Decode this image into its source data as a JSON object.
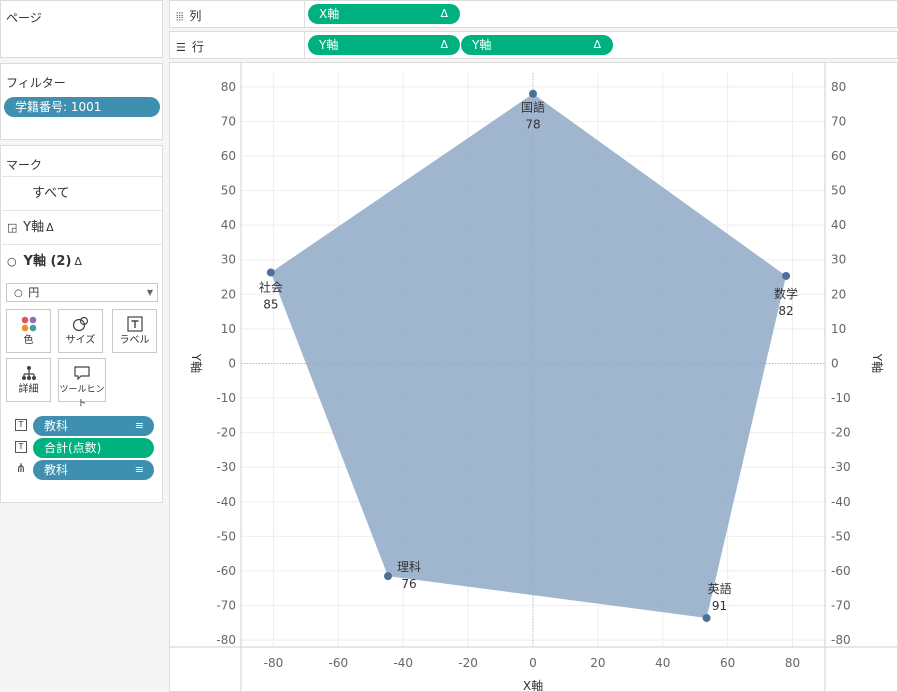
{
  "pages_title": "ページ",
  "filters": {
    "title": "フィルター",
    "items": [
      {
        "label": "学籍番号: 1001"
      }
    ]
  },
  "marks": {
    "title": "マーク",
    "all_label": "すべて",
    "layers": [
      {
        "label": "Y軸",
        "delta": "Δ"
      },
      {
        "label": "Y軸 (2)",
        "delta": "Δ"
      }
    ],
    "mark_type": "円",
    "buttons": [
      {
        "label": "色"
      },
      {
        "label": "サイズ"
      },
      {
        "label": "ラベル"
      },
      {
        "label": "詳細"
      },
      {
        "label": "ツールヒント"
      }
    ],
    "fields": [
      {
        "label": "教科",
        "type": "blue"
      },
      {
        "label": "合計(点数)",
        "type": "green"
      },
      {
        "label": "教科",
        "type": "blue"
      }
    ]
  },
  "shelves": {
    "columns": {
      "label": "列",
      "pills": [
        {
          "label": "X軸",
          "delta": "Δ"
        }
      ]
    },
    "rows": {
      "label": "行",
      "pills": [
        {
          "label": "Y軸",
          "delta": "Δ"
        },
        {
          "label": "Y軸",
          "delta": "Δ"
        }
      ]
    }
  },
  "colors": {
    "polygon": "#8fa9c7",
    "point": "#4e6f9a",
    "blue_pill": "#3e8fb0",
    "green_pill": "#00b180"
  },
  "chart_data": {
    "type": "scatter",
    "xlabel": "X軸",
    "ylabel": "Y軸",
    "ylabel_right": "Y軸",
    "xlim": [
      -90,
      90
    ],
    "ylim": [
      -82,
      84
    ],
    "x_ticks": [
      -80,
      -60,
      -40,
      -20,
      0,
      20,
      40,
      60,
      80
    ],
    "y_ticks": [
      80,
      70,
      60,
      50,
      40,
      30,
      20,
      10,
      0,
      -10,
      -20,
      -30,
      -40,
      -50,
      -60,
      -70,
      -80
    ],
    "grid": true,
    "points": [
      {
        "subject": "国語",
        "score": 78,
        "x": 0,
        "y": 78
      },
      {
        "subject": "数学",
        "score": 82,
        "x": 78,
        "y": 25.3
      },
      {
        "subject": "英語",
        "score": 91,
        "x": 53.5,
        "y": -73.6
      },
      {
        "subject": "理科",
        "score": 76,
        "x": -44.7,
        "y": -61.5
      },
      {
        "subject": "社会",
        "score": 85,
        "x": -80.8,
        "y": 26.3
      }
    ]
  }
}
